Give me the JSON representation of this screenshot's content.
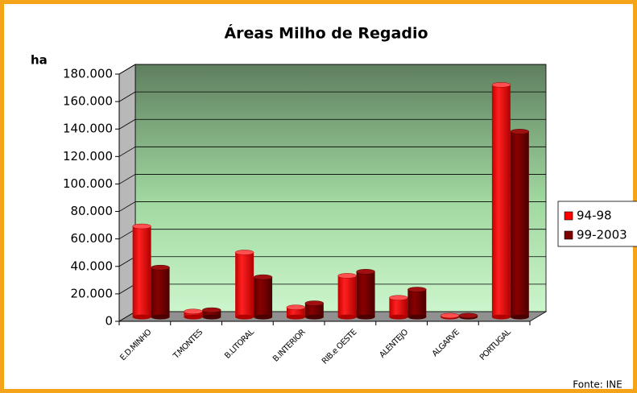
{
  "chart_data": {
    "type": "bar3d",
    "title": "Áreas Milho de Regadio",
    "y_label": "ha",
    "source": "Fonte: INE",
    "categories": [
      "E.D.MINHO",
      "T.MONTES",
      "B.LITORAL",
      "B.INTERIOR",
      "RIB.e OESTE",
      "ALENTEJO",
      "ALGARVE",
      "PORTUGAL"
    ],
    "series": [
      {
        "name": "94-98",
        "color": "#ff0000",
        "values": [
          66000,
          4000,
          47000,
          7000,
          30000,
          14000,
          1000,
          169000
        ]
      },
      {
        "name": "99-2003",
        "color": "#800000",
        "values": [
          36000,
          5000,
          29000,
          10000,
          33000,
          20000,
          1000,
          135000
        ]
      }
    ],
    "ylim": [
      0,
      180000
    ],
    "yticks": [
      0,
      {
        "value": 20000,
        "label": "20.000"
      },
      {
        "value": 40000,
        "label": "40.000"
      },
      {
        "value": 60000,
        "label": "60.000"
      },
      {
        "value": 80000,
        "label": "80.000"
      },
      {
        "value": 100000,
        "label": "100.000"
      },
      {
        "value": 120000,
        "label": "120.000"
      },
      {
        "value": 140000,
        "label": "140.000"
      },
      {
        "value": 160000,
        "label": "160.000"
      },
      {
        "value": 180000,
        "label": "180.000"
      }
    ],
    "grid": true,
    "legend": "right"
  }
}
